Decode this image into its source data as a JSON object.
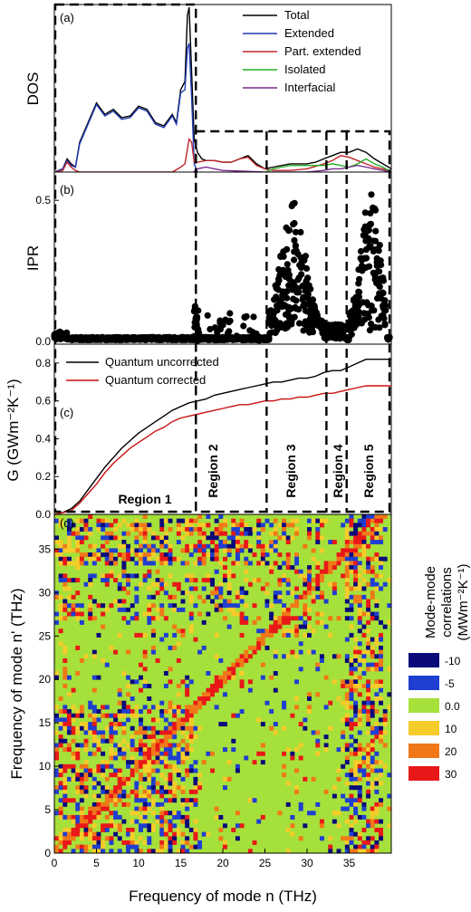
{
  "figure": {
    "panel_labels": [
      "(a)",
      "(b)",
      "(c)",
      "(d)"
    ],
    "regions": [
      "Region 1",
      "Region 2",
      "Region 3",
      "Region 4",
      "Region 5"
    ],
    "region_boundaries_thz": [
      16.8,
      25.2,
      32.3,
      34.7
    ]
  },
  "chart_data": [
    {
      "type": "line",
      "panel": "(a)",
      "ylabel": "DOS",
      "xlim": [
        0,
        40
      ],
      "legend_position": "top-right",
      "series": [
        {
          "name": "Total",
          "color": "#000000",
          "x": [
            0,
            1,
            1.5,
            2,
            2.5,
            3,
            4,
            5,
            6,
            7,
            8,
            9,
            10,
            11,
            12,
            13,
            14,
            14.5,
            15,
            15.5,
            15.8,
            16,
            16.3,
            16.6,
            17,
            17.5,
            18,
            19,
            20,
            21,
            22,
            23,
            24,
            25,
            26,
            27,
            28,
            29,
            30,
            31,
            32,
            33,
            34,
            35,
            36,
            37,
            38,
            39,
            40
          ],
          "y": [
            0,
            0.02,
            0.08,
            0.05,
            0.03,
            0.18,
            0.3,
            0.42,
            0.35,
            0.38,
            0.33,
            0.34,
            0.4,
            0.38,
            0.3,
            0.28,
            0.35,
            0.3,
            0.5,
            0.55,
            0.95,
            1.0,
            0.6,
            0.2,
            0.12,
            0.08,
            0.07,
            0.07,
            0.06,
            0.06,
            0.08,
            0.1,
            0.05,
            0.02,
            0.03,
            0.04,
            0.05,
            0.05,
            0.05,
            0.06,
            0.08,
            0.1,
            0.12,
            0.12,
            0.14,
            0.12,
            0.08,
            0.05,
            0.02
          ]
        },
        {
          "name": "Extended",
          "color": "#1f3bb3",
          "x": [
            0,
            1,
            1.5,
            2,
            2.5,
            3,
            4,
            5,
            6,
            7,
            8,
            9,
            10,
            11,
            12,
            13,
            14,
            14.5,
            15,
            15.5,
            15.8,
            16,
            16.3,
            16.6,
            17
          ],
          "y": [
            0,
            0.02,
            0.07,
            0.04,
            0.03,
            0.17,
            0.29,
            0.41,
            0.34,
            0.37,
            0.32,
            0.33,
            0.39,
            0.37,
            0.29,
            0.27,
            0.34,
            0.29,
            0.48,
            0.5,
            0.75,
            0.78,
            0.45,
            0.05,
            0
          ]
        },
        {
          "name": "Part. extended",
          "color": "#c0262b",
          "x": [
            0,
            1,
            1.5,
            2,
            2.5,
            3,
            14,
            15,
            15.5,
            16,
            16.3,
            16.6,
            17,
            18,
            19,
            20,
            21,
            22,
            23,
            24,
            25,
            26,
            28,
            30,
            32,
            33,
            34,
            35,
            36,
            37,
            38,
            39,
            40
          ],
          "y": [
            0,
            0.01,
            0.06,
            0.03,
            0.01,
            0,
            0,
            0.03,
            0.05,
            0.2,
            0.18,
            0.06,
            0.06,
            0.07,
            0.07,
            0.06,
            0.06,
            0.08,
            0.09,
            0.04,
            0.02,
            0.01,
            0.01,
            0.02,
            0.05,
            0.07,
            0.1,
            0.09,
            0.07,
            0.05,
            0.03,
            0.02,
            0
          ]
        },
        {
          "name": "Isolated",
          "color": "#22b022",
          "x": [
            25,
            26,
            27,
            28,
            29,
            30,
            31,
            32,
            33,
            34,
            35,
            36,
            37,
            38,
            39,
            40
          ],
          "y": [
            0,
            0.02,
            0.03,
            0.04,
            0.04,
            0.04,
            0.04,
            0.04,
            0.05,
            0.04,
            0.03,
            0.05,
            0.08,
            0.05,
            0.03,
            0
          ]
        },
        {
          "name": "Interfacial",
          "color": "#7a2a8a",
          "x": [
            16.5,
            17,
            18,
            19,
            20,
            25,
            30,
            32,
            33,
            34,
            35,
            36,
            37,
            38,
            40
          ],
          "y": [
            0,
            0.02,
            0.03,
            0.02,
            0.01,
            0,
            0,
            0.01,
            0.02,
            0.02,
            0.03,
            0.04,
            0.03,
            0.02,
            0
          ]
        }
      ]
    },
    {
      "type": "scatter",
      "panel": "(b)",
      "ylabel": "IPR",
      "ylim": [
        0,
        0.6
      ],
      "yticks": [
        "0.0",
        "0.5"
      ],
      "ytick_values": [
        0,
        0.5
      ]
    },
    {
      "type": "line",
      "panel": "(c)",
      "ylabel": "G (GWm⁻²K⁻¹)",
      "ylim": [
        0,
        0.9
      ],
      "yticks": [
        "0.0",
        "0.2",
        "0.4",
        "0.6",
        "0.8"
      ],
      "ytick_values": [
        0,
        0.2,
        0.4,
        0.6,
        0.8
      ],
      "legend_position": "top-left",
      "series": [
        {
          "name": "Quantum uncorrected",
          "color": "#000000",
          "x": [
            0,
            1,
            2,
            3,
            4,
            5,
            6,
            7,
            8,
            9,
            10,
            11,
            12,
            13,
            14,
            15,
            16,
            17,
            18,
            19,
            20,
            21,
            22,
            23,
            24,
            25,
            26,
            27,
            28,
            29,
            30,
            31,
            32,
            33,
            34,
            35,
            36,
            37,
            38,
            39,
            40
          ],
          "y": [
            0,
            0.01,
            0.03,
            0.07,
            0.13,
            0.19,
            0.25,
            0.3,
            0.35,
            0.39,
            0.43,
            0.46,
            0.49,
            0.52,
            0.55,
            0.57,
            0.59,
            0.6,
            0.61,
            0.63,
            0.64,
            0.65,
            0.66,
            0.67,
            0.68,
            0.69,
            0.7,
            0.7,
            0.71,
            0.72,
            0.72,
            0.73,
            0.75,
            0.76,
            0.76,
            0.78,
            0.8,
            0.82,
            0.82,
            0.82,
            0.82
          ]
        },
        {
          "name": "Quantum corrected",
          "color": "#cc1111",
          "x": [
            0,
            1,
            2,
            3,
            4,
            5,
            6,
            7,
            8,
            9,
            10,
            11,
            12,
            13,
            14,
            15,
            16,
            17,
            18,
            19,
            20,
            21,
            22,
            23,
            24,
            25,
            26,
            27,
            28,
            29,
            30,
            31,
            32,
            33,
            34,
            35,
            36,
            37,
            38,
            39,
            40
          ],
          "y": [
            0,
            0.01,
            0.02,
            0.06,
            0.11,
            0.16,
            0.22,
            0.27,
            0.31,
            0.35,
            0.38,
            0.41,
            0.44,
            0.46,
            0.49,
            0.51,
            0.52,
            0.53,
            0.54,
            0.55,
            0.56,
            0.57,
            0.58,
            0.58,
            0.59,
            0.6,
            0.6,
            0.61,
            0.61,
            0.62,
            0.62,
            0.63,
            0.64,
            0.64,
            0.65,
            0.66,
            0.67,
            0.68,
            0.68,
            0.68,
            0.68
          ]
        }
      ]
    },
    {
      "type": "heatmap",
      "panel": "(d)",
      "xlabel": "Frequency of mode n (THz)",
      "ylabel": "Frequency of mode n' (THz)",
      "xlim": [
        0,
        40
      ],
      "ylim": [
        0,
        39
      ],
      "xticks": [
        "0",
        "5",
        "10",
        "15",
        "20",
        "25",
        "30",
        "35"
      ],
      "xtick_values": [
        0,
        5,
        10,
        15,
        20,
        25,
        30,
        35
      ],
      "yticks": [
        "0",
        "5",
        "10",
        "15",
        "20",
        "25",
        "30",
        "35"
      ],
      "ytick_values": [
        0,
        5,
        10,
        15,
        20,
        25,
        30,
        35
      ],
      "colorbar": {
        "title_line1": "Mode-mode",
        "title_line2": "correlations",
        "title_line3": "(MWm⁻²K⁻¹)",
        "levels": [
          {
            "label": "-10",
            "color": "#0a0a7a"
          },
          {
            "label": "-5",
            "color": "#1f3fd0"
          },
          {
            "label": "0.0",
            "color": "#a6e03a"
          },
          {
            "label": "10",
            "color": "#f5cc2a"
          },
          {
            "label": "20",
            "color": "#f07818"
          },
          {
            "label": "30",
            "color": "#e81818"
          }
        ]
      }
    }
  ]
}
